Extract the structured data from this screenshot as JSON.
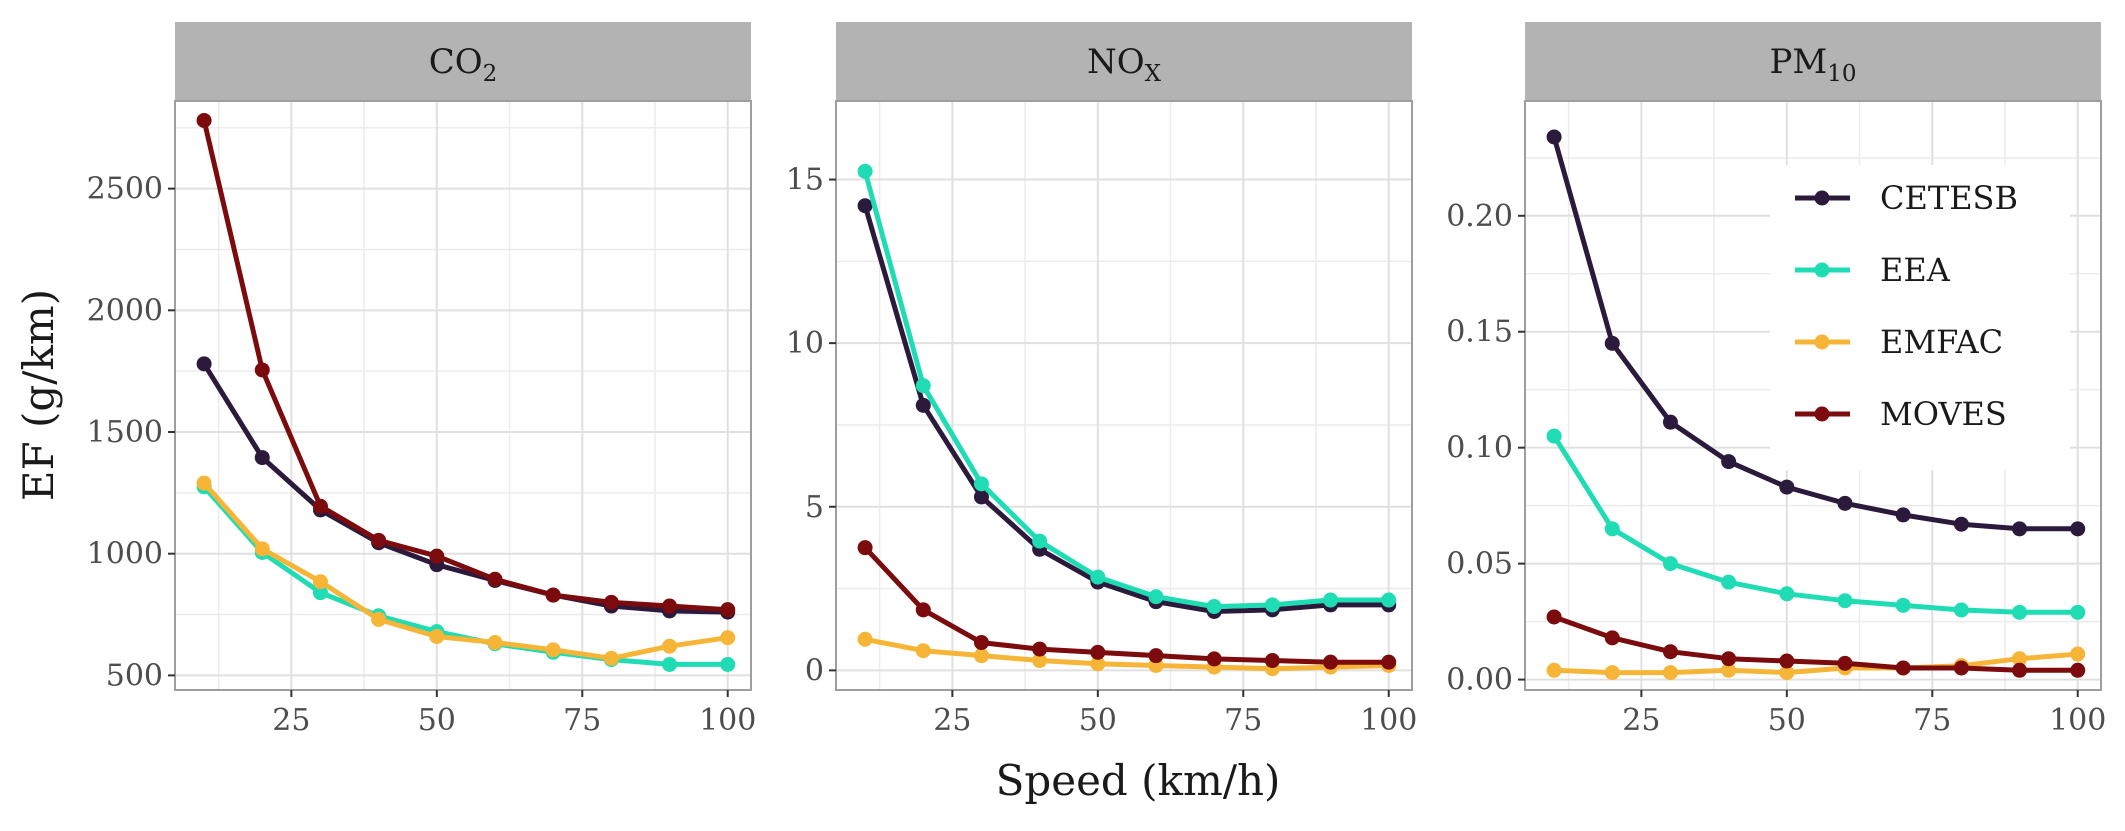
{
  "chart_data": [
    {
      "type": "line",
      "title": "CO",
      "title_sub": "2",
      "x": [
        10,
        20,
        30,
        40,
        50,
        60,
        70,
        80,
        90,
        100
      ],
      "xticks": [
        25,
        50,
        75,
        100
      ],
      "yticks": [
        500,
        1000,
        1500,
        2000,
        2500
      ],
      "xlim": [
        5,
        104
      ],
      "ylim": [
        440,
        2860
      ],
      "series": [
        {
          "name": "CETESB",
          "values": [
            1780,
            1395,
            1180,
            1045,
            955,
            890,
            830,
            785,
            765,
            760
          ]
        },
        {
          "name": "EEA",
          "values": [
            1275,
            1005,
            840,
            745,
            680,
            630,
            595,
            565,
            545,
            545
          ]
        },
        {
          "name": "EMFAC",
          "values": [
            1290,
            1020,
            885,
            730,
            660,
            635,
            605,
            570,
            620,
            655
          ]
        },
        {
          "name": "MOVES",
          "values": [
            2780,
            1755,
            1195,
            1055,
            990,
            895,
            830,
            800,
            785,
            770
          ]
        }
      ]
    },
    {
      "type": "line",
      "title": "NO",
      "title_sub": "X",
      "x": [
        10,
        20,
        30,
        40,
        50,
        60,
        70,
        80,
        90,
        100
      ],
      "xticks": [
        25,
        50,
        75,
        100
      ],
      "yticks": [
        0,
        5,
        10,
        15
      ],
      "xlim": [
        5,
        104
      ],
      "ylim": [
        -0.6,
        17.4
      ],
      "series": [
        {
          "name": "CETESB",
          "values": [
            14.2,
            8.1,
            5.3,
            3.7,
            2.7,
            2.1,
            1.8,
            1.85,
            2.0,
            2.0
          ]
        },
        {
          "name": "EEA",
          "values": [
            15.25,
            8.7,
            5.7,
            3.95,
            2.85,
            2.25,
            1.95,
            2.0,
            2.15,
            2.15
          ]
        },
        {
          "name": "EMFAC",
          "values": [
            0.95,
            0.6,
            0.45,
            0.3,
            0.2,
            0.15,
            0.1,
            0.05,
            0.1,
            0.15
          ]
        },
        {
          "name": "MOVES",
          "values": [
            3.75,
            1.85,
            0.85,
            0.65,
            0.55,
            0.45,
            0.35,
            0.3,
            0.25,
            0.25
          ]
        }
      ]
    },
    {
      "type": "line",
      "title": "PM",
      "title_sub": "10",
      "x": [
        10,
        20,
        30,
        40,
        50,
        60,
        70,
        80,
        90,
        100
      ],
      "xticks": [
        25,
        50,
        75,
        100
      ],
      "yticks": [
        "0.00",
        "0.05",
        "0.10",
        "0.15",
        "0.20"
      ],
      "xlim": [
        5,
        104
      ],
      "ylim": [
        -0.0045,
        0.2495
      ],
      "series": [
        {
          "name": "CETESB",
          "values": [
            0.234,
            0.145,
            0.111,
            0.094,
            0.083,
            0.076,
            0.071,
            0.067,
            0.065,
            0.065
          ]
        },
        {
          "name": "EEA",
          "values": [
            0.105,
            0.065,
            0.05,
            0.042,
            0.037,
            0.034,
            0.032,
            0.03,
            0.029,
            0.029
          ]
        },
        {
          "name": "EMFAC",
          "values": [
            0.004,
            0.003,
            0.003,
            0.004,
            0.003,
            0.005,
            0.005,
            0.006,
            0.009,
            0.011
          ]
        },
        {
          "name": "MOVES",
          "values": [
            0.027,
            0.018,
            0.012,
            0.009,
            0.008,
            0.007,
            0.005,
            0.005,
            0.004,
            0.004
          ]
        }
      ]
    }
  ],
  "axes": {
    "xlabel": "Speed (km/h)",
    "ylabel": "EF (g/km)"
  },
  "legend": {
    "placement": "right, inside PM10 panel",
    "entries": [
      "CETESB",
      "EEA",
      "EMFAC",
      "MOVES"
    ]
  },
  "colors": {
    "CETESB": "#2c1a3d",
    "EEA": "#1fdcb4",
    "EMFAC": "#f7b538",
    "MOVES": "#7b0b0c",
    "strip": "#b3b3b3",
    "grid": "#e0e0e0",
    "border": "#9e9e9e"
  }
}
